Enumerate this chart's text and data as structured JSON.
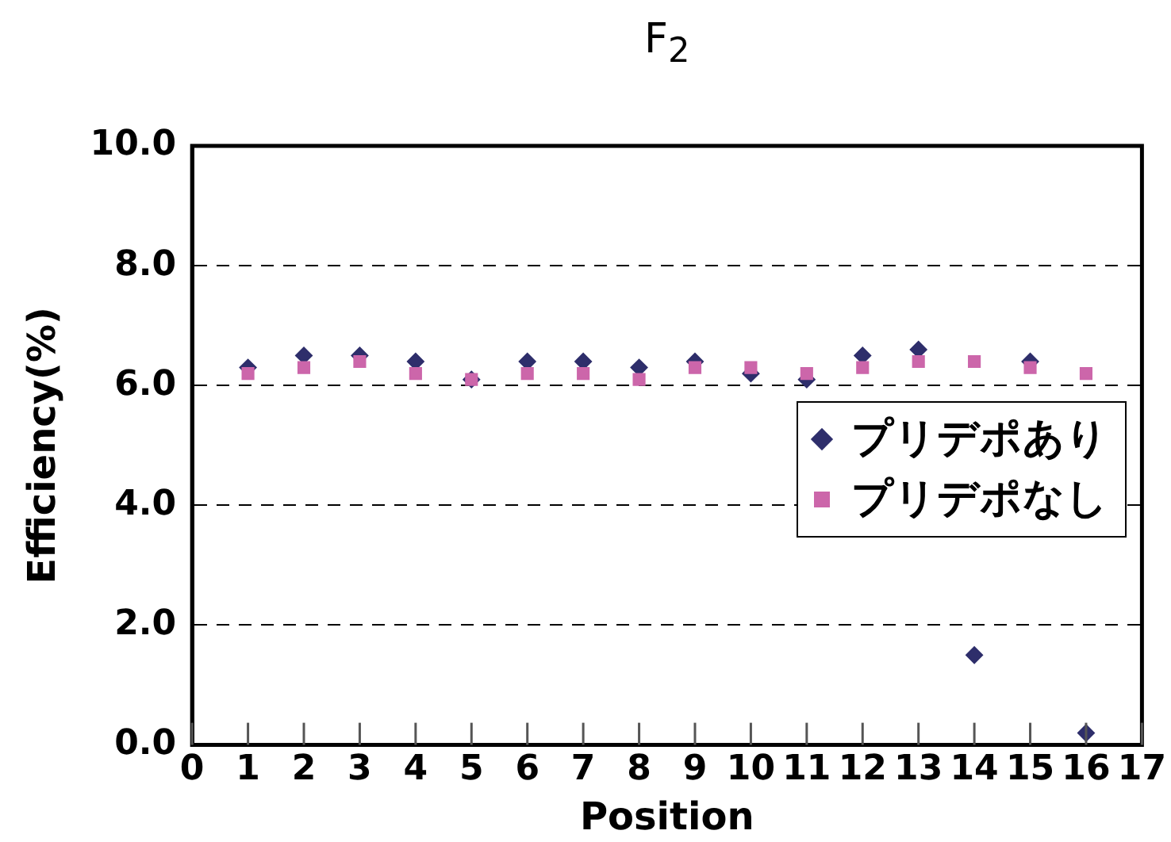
{
  "chart_data": {
    "type": "scatter",
    "title": "F$_{2}$",
    "xlabel": "Position",
    "ylabel": "Efficiency(%)",
    "x": [
      1,
      2,
      3,
      4,
      5,
      6,
      7,
      8,
      9,
      10,
      11,
      12,
      13,
      14,
      15,
      16
    ],
    "series": [
      {
        "name": "プリデポあり",
        "color": "#2e2e6b",
        "marker": "diamond",
        "values": [
          6.3,
          6.5,
          6.5,
          6.4,
          6.1,
          6.4,
          6.4,
          6.3,
          6.4,
          6.2,
          6.1,
          6.5,
          6.6,
          1.5,
          6.4,
          0.2
        ]
      },
      {
        "name": "プリデポなし",
        "color": "#cc66aa",
        "marker": "square",
        "values": [
          6.2,
          6.3,
          6.4,
          6.2,
          6.1,
          6.2,
          6.2,
          6.1,
          6.3,
          6.3,
          6.2,
          6.3,
          6.4,
          6.4,
          6.3,
          6.2
        ]
      }
    ],
    "xlim": [
      0,
      17
    ],
    "xticks": [
      0,
      1,
      2,
      3,
      4,
      5,
      6,
      7,
      8,
      9,
      10,
      11,
      12,
      13,
      14,
      15,
      16,
      17
    ],
    "ylim": [
      0,
      10
    ],
    "yticks": [
      {
        "value": 0,
        "label": "0.0"
      },
      {
        "value": 2,
        "label": "2.0"
      },
      {
        "value": 4,
        "label": "4.0"
      },
      {
        "value": 6,
        "label": "6.0"
      },
      {
        "value": 8,
        "label": "8.0"
      },
      {
        "value": 10,
        "label": "10.0"
      }
    ],
    "grid": "y",
    "line_style": "dashed",
    "legend": "right"
  }
}
